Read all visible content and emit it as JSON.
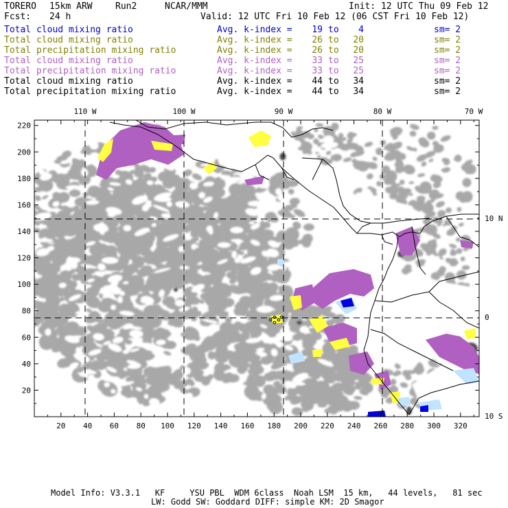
{
  "header": {
    "model": "TORERO",
    "resolution": "15km ARW",
    "run": "Run2",
    "org": "NCAR/MMM",
    "init": "Init: 12 UTC Thu 09 Feb 12",
    "fcst_label": "Fcst:",
    "fcst_value": "24 h",
    "valid": "Valid: 12 UTC Fri 10 Feb 12 (06 CST Fri 10 Feb 12)"
  },
  "legend": [
    {
      "field": "Total cloud mixing ratio",
      "avg": "Avg. k-index =",
      "k1": "19",
      "to": "to",
      "k2": "4",
      "sm": "sm= 2",
      "color": "#0000cc"
    },
    {
      "field": "Total cloud mixing ratio",
      "avg": "Avg. k-index =",
      "k1": "26",
      "to": "to",
      "k2": "20",
      "sm": "sm= 2",
      "color": "#808000"
    },
    {
      "field": "Total precipitation mixing ratio",
      "avg": "Avg. k-index =",
      "k1": "26",
      "to": "to",
      "k2": "20",
      "sm": "sm= 2",
      "color": "#808000"
    },
    {
      "field": "Total cloud mixing ratio",
      "avg": "Avg. k-index =",
      "k1": "33",
      "to": "to",
      "k2": "25",
      "sm": "sm= 2",
      "color": "#b060c0"
    },
    {
      "field": "Total precipitation mixing ratio",
      "avg": "Avg. k-index =",
      "k1": "33",
      "to": "to",
      "k2": "25",
      "sm": "sm= 2",
      "color": "#b060c0"
    },
    {
      "field": "Total cloud mixing ratio",
      "avg": "Avg. k-index =",
      "k1": "44",
      "to": "to",
      "k2": "34",
      "sm": "sm= 2",
      "color": "#000000"
    },
    {
      "field": "Total precipitation mixing ratio",
      "avg": "Avg. k-index =",
      "k1": "44",
      "to": "to",
      "k2": "34",
      "sm": "sm= 2",
      "color": "#000000"
    }
  ],
  "map": {
    "lon_labels": [
      "110 W",
      "100 W",
      "90 W",
      "80 W",
      "70 W"
    ],
    "lat_labels": [
      "10 N",
      "0",
      "10 S"
    ],
    "y_ticks": [
      "220",
      "200",
      "180",
      "160",
      "140",
      "120",
      "100",
      "80",
      "60",
      "40",
      "20"
    ],
    "x_ticks": [
      "20",
      "40",
      "60",
      "80",
      "100",
      "120",
      "140",
      "160",
      "180",
      "200",
      "220",
      "240",
      "260",
      "280",
      "300",
      "320"
    ],
    "colors": {
      "light_gray": "#a8a8a8",
      "dark_gray": "#505050",
      "purple": "#b060c0",
      "yellow": "#ffff40",
      "light_blue": "#c0e4ff",
      "blue": "#0000e0",
      "frame": "#000000"
    }
  },
  "footer": {
    "line1": "Model Info: V3.3.1   KF     YSU PBL  WDM 6class  Noah LSM  15 km,   44 levels,   81 sec",
    "line2": "LW: Godd SW: Goddard DIFF: simple KM: 2D Smagor"
  }
}
